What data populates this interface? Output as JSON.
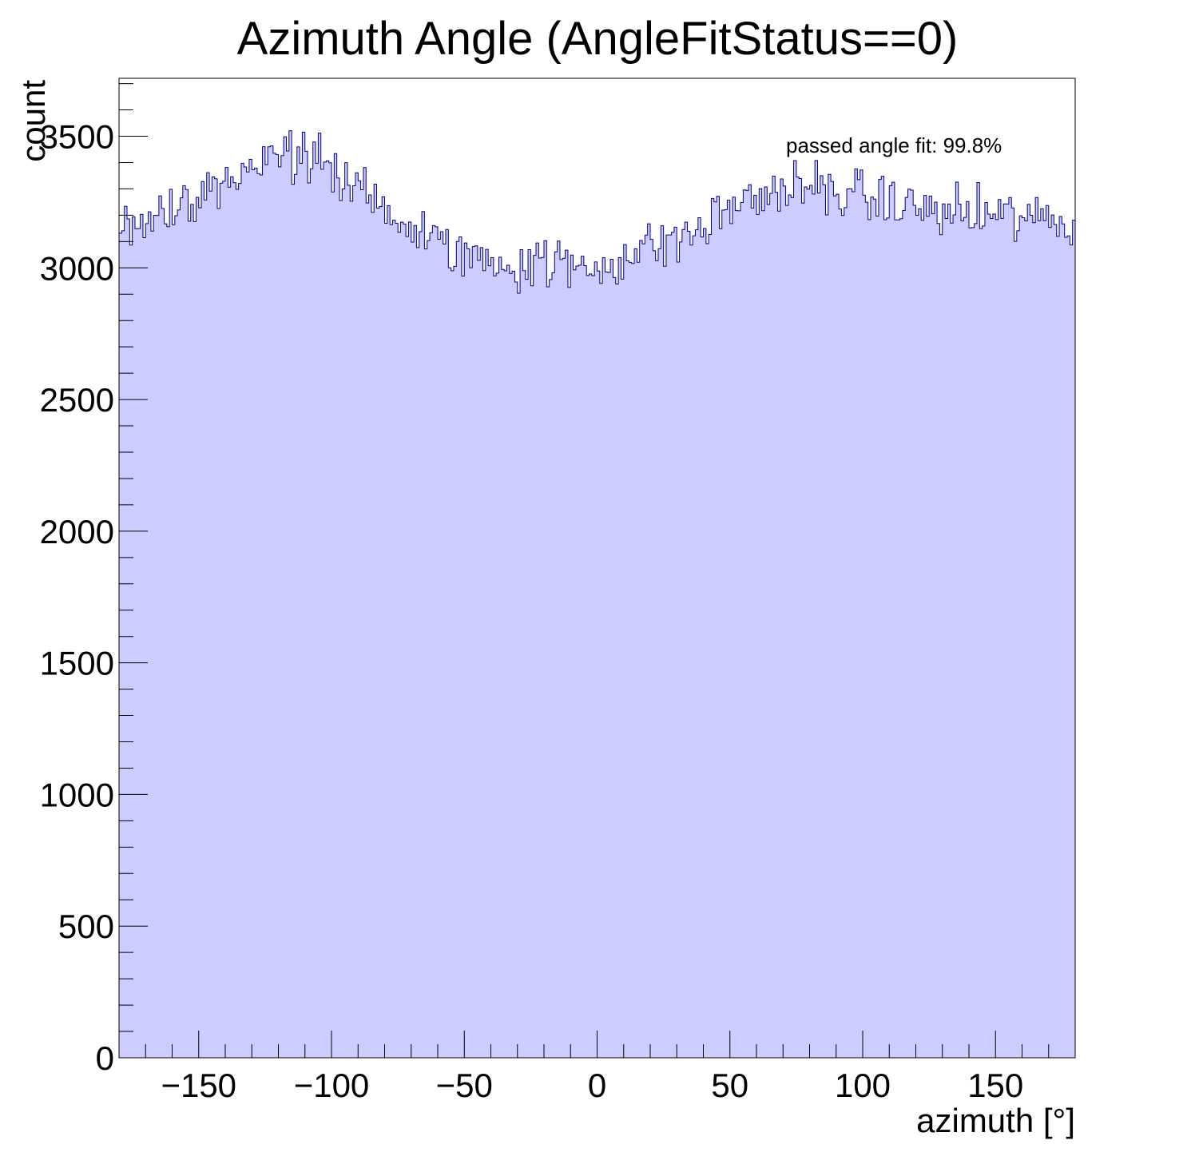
{
  "chart_data": {
    "type": "histogram",
    "title": "Azimuth Angle (AngleFitStatus==0)",
    "xlabel": "azimuth [°]",
    "ylabel": "count",
    "annotation": "passed angle fit: 99.8%",
    "xlim": [
      -180,
      180
    ],
    "ylim": [
      0,
      3720
    ],
    "x_ticks": [
      -150,
      -100,
      -50,
      0,
      50,
      100,
      150
    ],
    "x_tick_labels": [
      "−150",
      "−100",
      "−50",
      "0",
      "50",
      "100",
      "150"
    ],
    "y_ticks": [
      0,
      500,
      1000,
      1500,
      2000,
      2500,
      3000,
      3500
    ],
    "y_tick_labels": [
      "0",
      "500",
      "1000",
      "1500",
      "2000",
      "2500",
      "3000",
      "3500"
    ],
    "bin_width_deg": 1,
    "envelope": {
      "x": [
        -180,
        -165,
        -150,
        -135,
        -120,
        -110,
        -100,
        -90,
        -80,
        -70,
        -60,
        -50,
        -40,
        -30,
        -20,
        -10,
        0,
        10,
        20,
        30,
        40,
        50,
        60,
        70,
        80,
        90,
        100,
        110,
        120,
        130,
        140,
        150,
        160,
        170,
        180
      ],
      "counts": [
        3160,
        3200,
        3280,
        3350,
        3420,
        3430,
        3370,
        3300,
        3220,
        3150,
        3090,
        3050,
        3030,
        3010,
        3030,
        3000,
        3000,
        3040,
        3080,
        3110,
        3150,
        3230,
        3270,
        3300,
        3300,
        3290,
        3270,
        3250,
        3230,
        3210,
        3200,
        3200,
        3190,
        3180,
        3150
      ]
    },
    "noise_amplitude": 100,
    "colors": {
      "fill": "#ccccff",
      "line": "#000080",
      "frame": "#000000",
      "background": "#ffffff"
    },
    "grid": false,
    "legend": "none"
  }
}
